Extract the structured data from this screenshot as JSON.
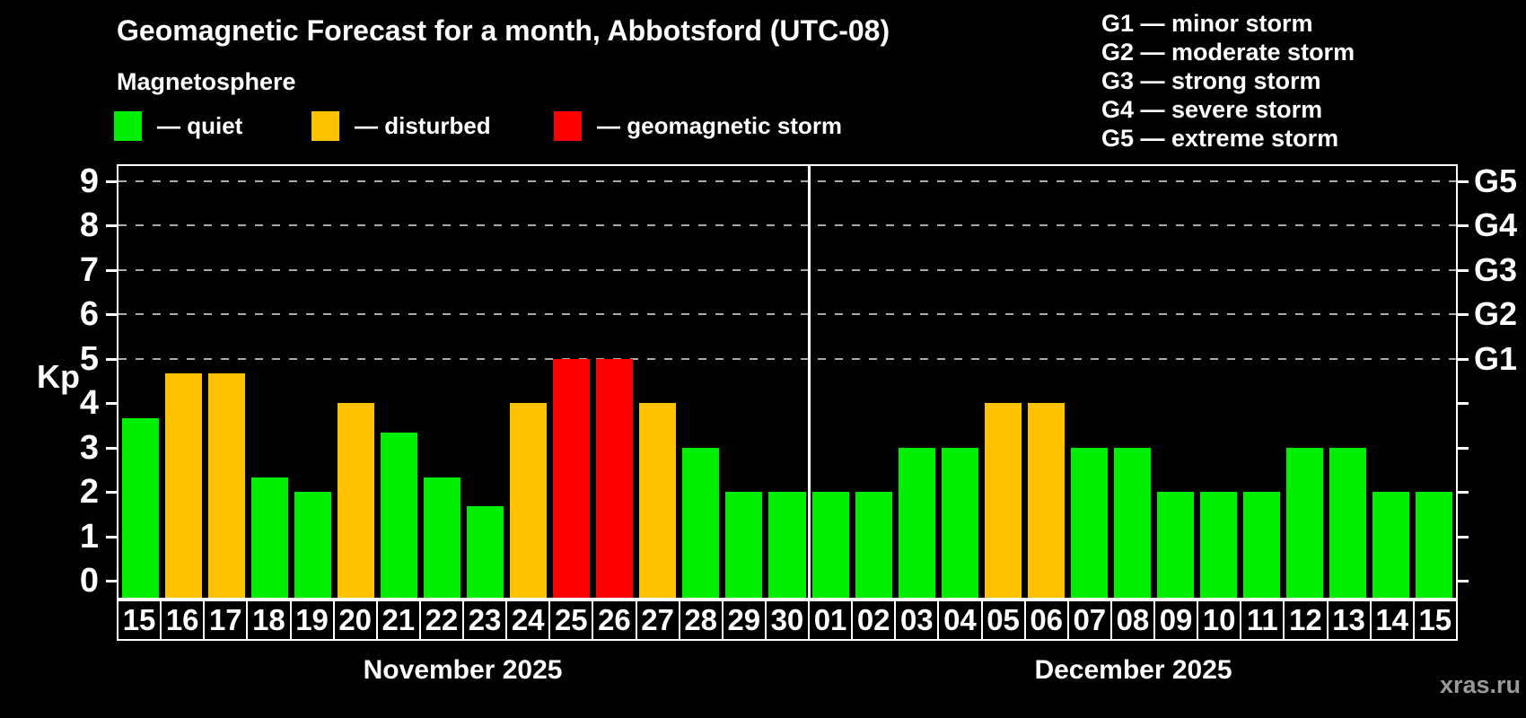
{
  "chart_data": {
    "type": "bar",
    "title": "Geomagnetic Forecast for a month, Abbotsford (UTC-08)",
    "subtitle": "Magnetosphere",
    "ylabel": "Kp",
    "ylim": [
      0,
      9
    ],
    "y_ticks": [
      0,
      1,
      2,
      3,
      4,
      5,
      6,
      7,
      8,
      9
    ],
    "grid": "dashed horizontal gridlines at storm levels only",
    "gridlines_at_kp": [
      5,
      6,
      7,
      8,
      9
    ],
    "legend_position": "top-left",
    "legend": [
      {
        "label": "— quiet",
        "status": "quiet",
        "color": "#00ee00"
      },
      {
        "label": "— disturbed",
        "status": "disturbed",
        "color": "#ffc200"
      },
      {
        "label": "— geomagnetic storm",
        "status": "storm",
        "color": "#ff0000"
      }
    ],
    "g_storm_legend": [
      "G1 — minor storm",
      "G2 — moderate storm",
      "G3 — strong storm",
      "G4 — severe storm",
      "G5 — extreme storm"
    ],
    "right_axis_labels": [
      {
        "label": "G1",
        "kp": 5
      },
      {
        "label": "G2",
        "kp": 6
      },
      {
        "label": "G3",
        "kp": 7
      },
      {
        "label": "G4",
        "kp": 8
      },
      {
        "label": "G5",
        "kp": 9
      }
    ],
    "status_colors": {
      "quiet": "#00ee00",
      "disturbed": "#ffc200",
      "storm": "#ff0000"
    },
    "months": [
      {
        "label": "November 2025",
        "days": [
          {
            "day": "15",
            "kp": 3.67,
            "status": "quiet"
          },
          {
            "day": "16",
            "kp": 4.67,
            "status": "disturbed"
          },
          {
            "day": "17",
            "kp": 4.67,
            "status": "disturbed"
          },
          {
            "day": "18",
            "kp": 2.33,
            "status": "quiet"
          },
          {
            "day": "19",
            "kp": 2,
            "status": "quiet"
          },
          {
            "day": "20",
            "kp": 4,
            "status": "disturbed"
          },
          {
            "day": "21",
            "kp": 3.33,
            "status": "quiet"
          },
          {
            "day": "22",
            "kp": 2.33,
            "status": "quiet"
          },
          {
            "day": "23",
            "kp": 1.67,
            "status": "quiet"
          },
          {
            "day": "24",
            "kp": 4,
            "status": "disturbed"
          },
          {
            "day": "25",
            "kp": 5,
            "status": "storm"
          },
          {
            "day": "26",
            "kp": 5,
            "status": "storm"
          },
          {
            "day": "27",
            "kp": 4,
            "status": "disturbed"
          },
          {
            "day": "28",
            "kp": 3,
            "status": "quiet"
          },
          {
            "day": "29",
            "kp": 2,
            "status": "quiet"
          },
          {
            "day": "30",
            "kp": 2,
            "status": "quiet"
          }
        ]
      },
      {
        "label": "December 2025",
        "days": [
          {
            "day": "01",
            "kp": 2,
            "status": "quiet"
          },
          {
            "day": "02",
            "kp": 2,
            "status": "quiet"
          },
          {
            "day": "03",
            "kp": 3,
            "status": "quiet"
          },
          {
            "day": "04",
            "kp": 3,
            "status": "quiet"
          },
          {
            "day": "05",
            "kp": 4,
            "status": "disturbed"
          },
          {
            "day": "06",
            "kp": 4,
            "status": "disturbed"
          },
          {
            "day": "07",
            "kp": 3,
            "status": "quiet"
          },
          {
            "day": "08",
            "kp": 3,
            "status": "quiet"
          },
          {
            "day": "09",
            "kp": 2,
            "status": "quiet"
          },
          {
            "day": "10",
            "kp": 2,
            "status": "quiet"
          },
          {
            "day": "11",
            "kp": 2,
            "status": "quiet"
          },
          {
            "day": "12",
            "kp": 3,
            "status": "quiet"
          },
          {
            "day": "13",
            "kp": 3,
            "status": "quiet"
          },
          {
            "day": "14",
            "kp": 2,
            "status": "quiet"
          },
          {
            "day": "15",
            "kp": 2,
            "status": "quiet"
          }
        ]
      }
    ]
  },
  "footer": {
    "watermark": "xras.ru"
  }
}
